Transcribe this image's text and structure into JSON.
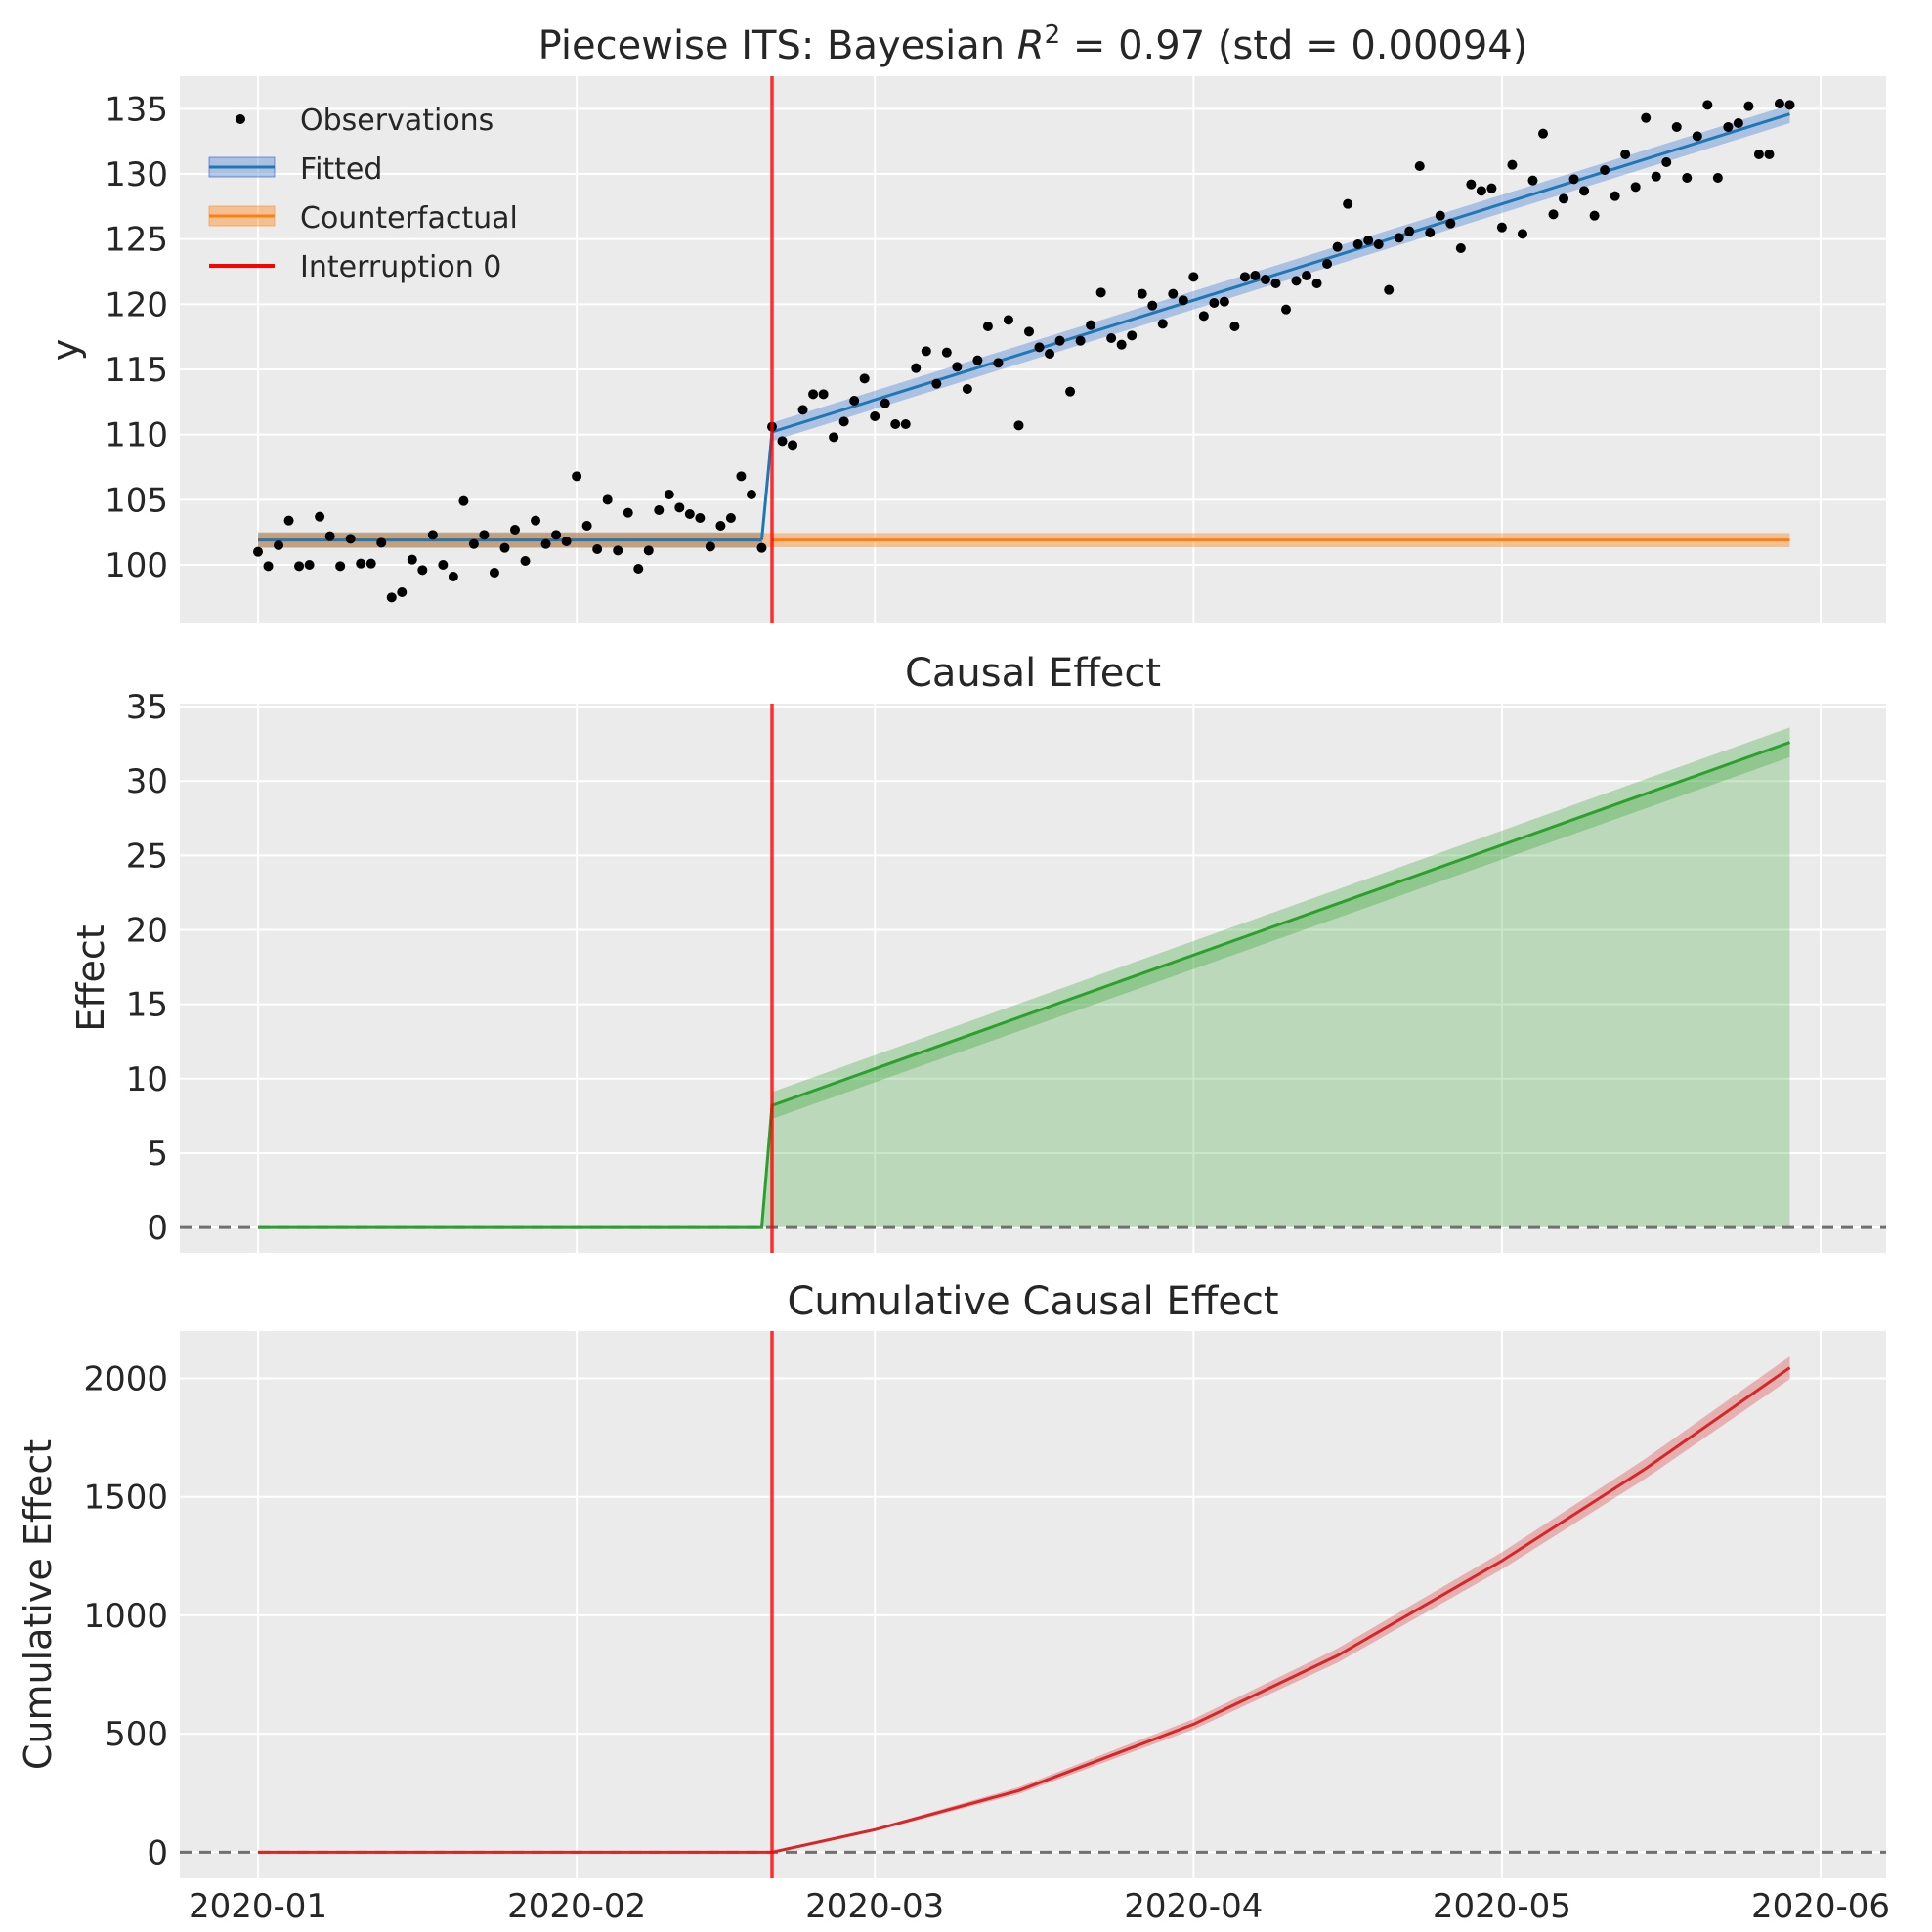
{
  "figure": {
    "background": "#ffffff",
    "panel_background": "#ebebeb",
    "colors": {
      "observations": "#000000",
      "fitted": "#1f77b4",
      "fitted_band": "#5b8fd6",
      "counterfactual": "#ff7f0e",
      "interruption": "#ff0000",
      "effect": "#2ca02c",
      "cumulative": "#d62728",
      "zero_line": "#707070"
    }
  },
  "chart_data": [
    {
      "type": "scatter",
      "title": "Piecewise ITS: Bayesian R² = 0.97 (std = 0.00094)",
      "title_parts": {
        "prefix": "Piecewise ITS: Bayesian ",
        "r": "R",
        "sup": "2",
        "suffix": " = 0.97 (std = 0.00094)"
      },
      "xlabel": "",
      "ylabel": "y",
      "ylim": [
        95.5,
        137.5
      ],
      "y_ticks": [
        100,
        105,
        110,
        115,
        120,
        125,
        130,
        135
      ],
      "grid": true,
      "legend_position": "top-left",
      "legend": [
        {
          "label": "Observations",
          "kind": "marker"
        },
        {
          "label": "Fitted",
          "kind": "band-line"
        },
        {
          "label": "Counterfactual",
          "kind": "band-line"
        },
        {
          "label": "Interruption 0",
          "kind": "line"
        }
      ],
      "interruption_date": "2020-02-20",
      "observations": {
        "start_date": "2020-01-01",
        "step_days": 1,
        "values": [
          101.0,
          99.9,
          101.5,
          103.4,
          99.9,
          100.0,
          103.7,
          102.2,
          99.9,
          102.0,
          100.1,
          100.1,
          101.7,
          97.5,
          97.9,
          100.4,
          99.6,
          102.3,
          100.0,
          99.1,
          104.9,
          101.6,
          102.3,
          99.4,
          101.3,
          102.7,
          100.3,
          103.4,
          101.6,
          102.3,
          101.8,
          106.8,
          103.0,
          101.2,
          105.0,
          101.1,
          104.0,
          99.7,
          101.1,
          104.2,
          105.4,
          104.4,
          103.9,
          103.6,
          101.4,
          103.0,
          103.6,
          106.8,
          105.4,
          101.3,
          110.6,
          109.5,
          109.2,
          111.9,
          113.1,
          113.1,
          109.8,
          111.0,
          112.6,
          114.3,
          111.4,
          112.4,
          110.8,
          110.8,
          115.1,
          116.4,
          113.9,
          116.3,
          115.2,
          113.5,
          115.7,
          118.3,
          115.5,
          118.8,
          110.7,
          117.9,
          116.7,
          116.2,
          117.2,
          113.3,
          117.2,
          118.4,
          120.9,
          117.4,
          116.9,
          117.6,
          120.8,
          119.9,
          118.5,
          120.8,
          120.3,
          122.1,
          119.1,
          120.1,
          120.2,
          118.3,
          122.1,
          122.2,
          121.9,
          121.6,
          119.6,
          121.8,
          122.2,
          121.6,
          123.1,
          124.4,
          127.7,
          124.6,
          124.9,
          124.6,
          121.1,
          125.1,
          125.6,
          130.6,
          125.5,
          126.8,
          126.2,
          124.3,
          129.2,
          128.7,
          128.9,
          125.9,
          130.7,
          125.4,
          129.5,
          133.1,
          126.9,
          128.1,
          129.6,
          128.7,
          126.8,
          130.3,
          128.3,
          131.5,
          129.0,
          134.3,
          129.8,
          130.9,
          133.6,
          129.7,
          132.9,
          135.3,
          129.7,
          133.6,
          133.9,
          135.2,
          131.5,
          131.5,
          135.4,
          135.3
        ]
      },
      "series": [
        {
          "name": "Fitted",
          "segments": [
            {
              "x": [
                "2020-01-01",
                "2020-02-19"
              ],
              "y": [
                101.9,
                101.9
              ],
              "band_halfwidth": 0.6
            },
            {
              "x": [
                "2020-02-19",
                "2020-02-20"
              ],
              "y": [
                101.9,
                110.2
              ],
              "band_halfwidth": 0.6
            },
            {
              "x": [
                "2020-02-20",
                "2020-05-29"
              ],
              "y": [
                110.2,
                134.6
              ],
              "band_halfwidth": 0.7
            }
          ]
        },
        {
          "name": "Counterfactual",
          "segments": [
            {
              "x": [
                "2020-02-20",
                "2020-05-29"
              ],
              "y": [
                101.9,
                101.9
              ],
              "band_halfwidth": 0.55
            }
          ]
        }
      ]
    },
    {
      "type": "area",
      "title": "Causal Effect",
      "xlabel": "",
      "ylabel": "Effect",
      "ylim": [
        -1.7,
        35.2
      ],
      "y_ticks": [
        0,
        5,
        10,
        15,
        20,
        25,
        30,
        35
      ],
      "grid": true,
      "interruption_date": "2020-02-20",
      "zero_line": 0,
      "series": [
        {
          "x": [
            "2020-01-01",
            "2020-02-19",
            "2020-02-20",
            "2020-05-29"
          ],
          "y": [
            0,
            0,
            8.2,
            32.6
          ],
          "band_halfwidth": [
            0,
            0,
            0.9,
            1.0
          ]
        }
      ]
    },
    {
      "type": "line",
      "title": "Cumulative Causal Effect",
      "xlabel": "",
      "ylabel": "Cumulative Effect",
      "ylim": [
        -110,
        2200
      ],
      "y_ticks": [
        0,
        500,
        1000,
        1500,
        2000
      ],
      "grid": true,
      "interruption_date": "2020-02-20",
      "zero_line": 0,
      "x_ticks": [
        "2020-01-01",
        "2020-02-01",
        "2020-03-01",
        "2020-04-01",
        "2020-05-01",
        "2020-06-01"
      ],
      "x_tick_labels": [
        "2020-01",
        "2020-02",
        "2020-03",
        "2020-04",
        "2020-05",
        "2020-06"
      ],
      "series": [
        {
          "x": [
            "2020-01-01",
            "2020-02-20",
            "2020-03-01",
            "2020-03-15",
            "2020-04-01",
            "2020-04-15",
            "2020-05-01",
            "2020-05-15",
            "2020-05-29"
          ],
          "y": [
            0,
            0,
            95,
            260,
            540,
            830,
            1230,
            1620,
            2045
          ],
          "band_halfwidth": [
            0,
            0,
            6,
            14,
            22,
            30,
            36,
            42,
            48
          ]
        }
      ]
    }
  ]
}
